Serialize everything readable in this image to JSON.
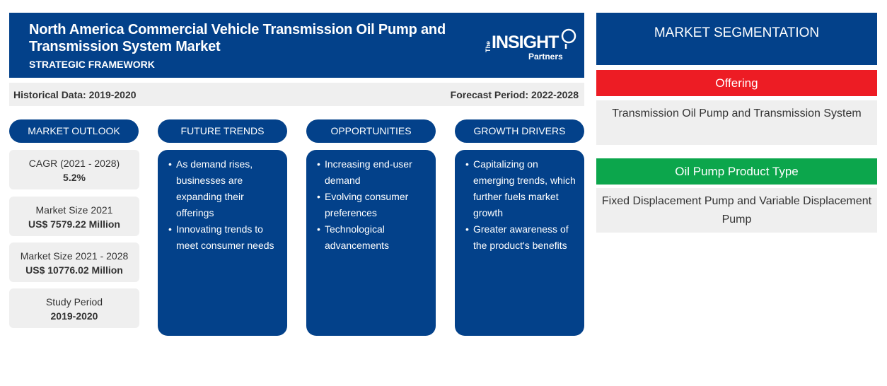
{
  "header": {
    "title": "North America Commercial Vehicle Transmission Oil Pump and Transmission System Market",
    "subtitle": "STRATEGIC FRAMEWORK",
    "logo": {
      "the": "The",
      "insight": "INSIGHT",
      "partners": "Partners"
    }
  },
  "periods": {
    "historical": "Historical Data: 2019-2020",
    "forecast": "Forecast Period: 2022-2028"
  },
  "columns": {
    "market_outlook": "MARKET OUTLOOK",
    "future_trends": "FUTURE TRENDS",
    "opportunities": "OPPORTUNITIES",
    "growth_drivers": "GROWTH DRIVERS"
  },
  "outlook": [
    {
      "label": "CAGR (2021 - 2028)",
      "value": "5.2%"
    },
    {
      "label": "Market Size 2021",
      "value": "US$ 7579.22 Million"
    },
    {
      "label": "Market Size 2021 - 2028",
      "value": "US$ 10776.02 Million"
    },
    {
      "label": "Study Period",
      "value": "2019-2020"
    }
  ],
  "future_trends": [
    "As demand rises, businesses are expanding their offerings",
    "Innovating trends to meet consumer needs"
  ],
  "opportunities": [
    "Increasing end-user demand",
    "Evolving consumer preferences",
    "Technological advancements"
  ],
  "growth_drivers": [
    "Capitalizing on emerging trends, which further fuels market growth",
    "Greater awareness of the product's benefits"
  ],
  "segmentation": {
    "title": "MARKET SEGMENTATION",
    "offering_label": "Offering",
    "offering_value": "Transmission Oil Pump and Transmission System",
    "product_type_label": "Oil Pump Product Type",
    "product_type_value": "Fixed Displacement Pump and Variable Displacement Pump"
  },
  "colors": {
    "primary_blue": "#03418a",
    "red": "#ed1c24",
    "green": "#0ca64c",
    "light_gray": "#efefef"
  }
}
